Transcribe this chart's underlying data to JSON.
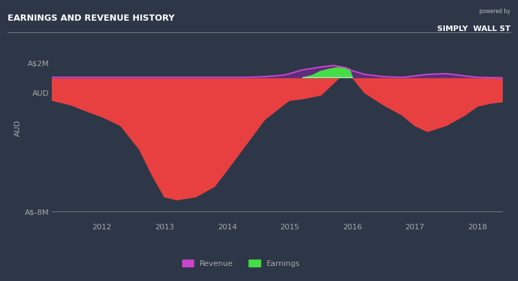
{
  "title": "EARNINGS AND REVENUE HISTORY",
  "bg_color": "#2d3748",
  "plot_bg_color": "#2d3748",
  "ylim": [
    -8.5,
    3.8
  ],
  "xlim": [
    2011.2,
    2018.4
  ],
  "xticks": [
    2012,
    2013,
    2014,
    2015,
    2016,
    2017,
    2018
  ],
  "ytick_labels": [
    "A$2M",
    "AUD",
    "A$-8M"
  ],
  "ytick_vals": [
    2.0,
    0.0,
    -8.0
  ],
  "revenue_color": "#cc44cc",
  "revenue_fill_color": "#5c2d7a",
  "earnings_fill_color": "#44dd44",
  "loss_fill_color": "#e84040",
  "revenue_x": [
    2011.2,
    2011.5,
    2011.8,
    2012.0,
    2012.3,
    2012.6,
    2012.8,
    2013.0,
    2013.2,
    2013.5,
    2013.8,
    2014.0,
    2014.3,
    2014.6,
    2014.9,
    2015.0,
    2015.2,
    2015.5,
    2015.7,
    2015.9,
    2016.0,
    2016.2,
    2016.5,
    2016.8,
    2017.0,
    2017.2,
    2017.5,
    2017.8,
    2018.0,
    2018.2,
    2018.4
  ],
  "revenue_y": [
    1.05,
    1.05,
    1.05,
    1.05,
    1.05,
    1.05,
    1.05,
    1.05,
    1.05,
    1.05,
    1.05,
    1.05,
    1.05,
    1.1,
    1.2,
    1.3,
    1.55,
    1.75,
    1.85,
    1.7,
    1.5,
    1.25,
    1.1,
    1.05,
    1.15,
    1.25,
    1.3,
    1.15,
    1.05,
    1.02,
    1.0
  ],
  "loss_x": [
    2011.2,
    2011.5,
    2011.8,
    2012.0,
    2012.3,
    2012.6,
    2012.8,
    2013.0,
    2013.2,
    2013.5,
    2013.8,
    2014.0,
    2014.3,
    2014.6,
    2014.9,
    2015.0,
    2015.2,
    2015.5,
    2015.8,
    2016.0,
    2016.2,
    2016.5,
    2016.8,
    2017.0,
    2017.2,
    2017.5,
    2017.8,
    2018.0,
    2018.2,
    2018.4
  ],
  "loss_y": [
    -0.5,
    -0.8,
    -1.3,
    -1.6,
    -2.2,
    -3.8,
    -5.5,
    -7.0,
    -7.2,
    -7.0,
    -6.3,
    -5.2,
    -3.5,
    -1.8,
    -0.8,
    -0.5,
    -0.4,
    -0.15,
    1.05,
    1.05,
    0.0,
    -0.8,
    -1.5,
    -2.2,
    -2.6,
    -2.2,
    -1.5,
    -0.9,
    -0.7,
    -0.6
  ],
  "earnings_x": [
    2015.2,
    2015.35,
    2015.5,
    2015.65,
    2015.8,
    2015.95,
    2016.0
  ],
  "earnings_y": [
    1.05,
    1.2,
    1.5,
    1.65,
    1.75,
    1.65,
    1.05
  ],
  "revenue_baseline": 1.05,
  "legend_items": [
    "Revenue",
    "Earnings"
  ],
  "legend_colors": [
    "#cc44cc",
    "#44dd44"
  ],
  "text_color": "#aaaaaa",
  "title_color": "#ffffff",
  "title_fontsize": 9,
  "tick_fontsize": 8
}
